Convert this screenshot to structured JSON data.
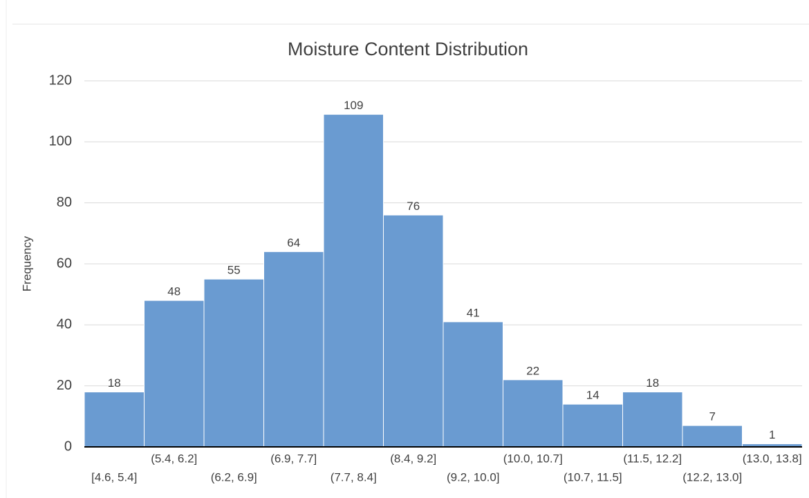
{
  "chart_data": {
    "type": "bar",
    "title": "Moisture Content Distribution",
    "y_label": "Frequency",
    "categories": [
      "[4.6, 5.4]",
      "(5.4, 6.2]",
      "(6.2, 6.9]",
      "(6.9, 7.7]",
      "(7.7, 8.4]",
      "(8.4, 9.2]",
      "(9.2, 10.0]",
      "(10.0, 10.7]",
      "(10.7, 11.5]",
      "(11.5, 12.2]",
      "(12.2, 13.0]",
      "(13.0, 13.8]"
    ],
    "values": [
      18,
      48,
      55,
      64,
      109,
      76,
      41,
      22,
      14,
      18,
      7,
      1
    ],
    "color": "#6a9bd1",
    "ylim": [
      0,
      120
    ],
    "yticks": [
      0,
      20,
      40,
      60,
      80,
      100,
      120
    ],
    "grid": true
  }
}
